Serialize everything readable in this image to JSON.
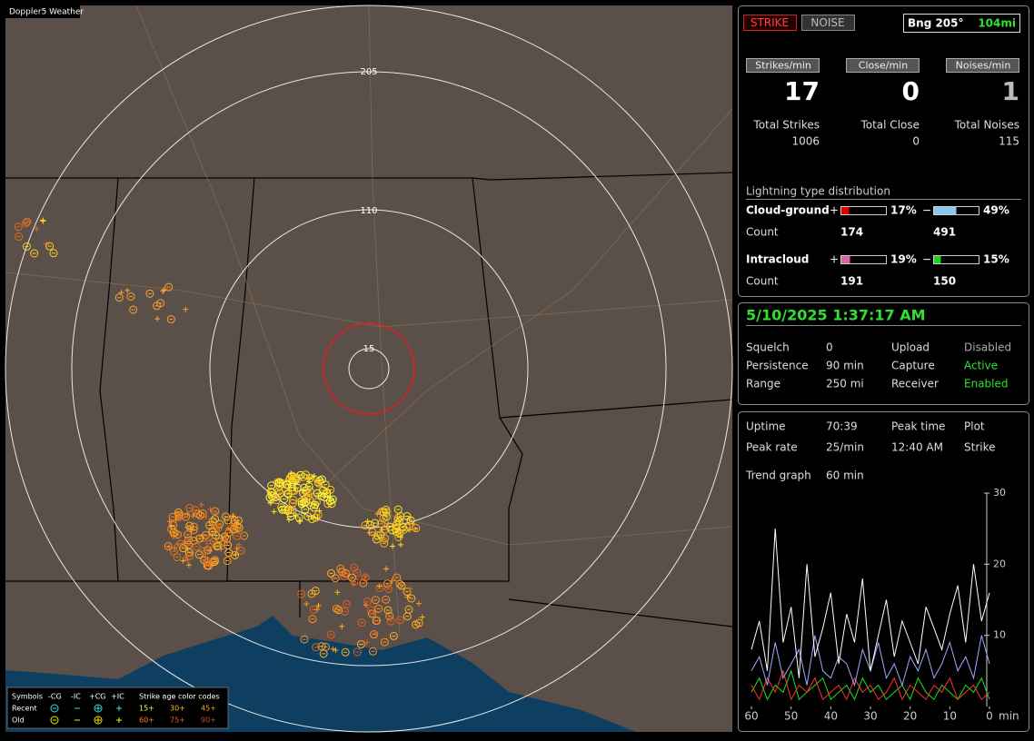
{
  "window_title": "Doppler5 Weather",
  "map": {
    "ring_labels": [
      "15",
      "110",
      "205"
    ]
  },
  "map_legend": {
    "header": [
      "Symbols",
      "-CG",
      "-IC",
      "+CG",
      "+IC",
      "Strike age color codes"
    ],
    "rows": [
      {
        "label": "Recent",
        "ages": [
          "15+",
          "30+",
          "45+"
        ]
      },
      {
        "label": "Old",
        "ages": [
          "60+",
          "75+",
          "90+"
        ]
      }
    ]
  },
  "status": {
    "strike": "STRIKE",
    "noise": "NOISE",
    "bearing": "Bng 205°",
    "distance": "104mi"
  },
  "counters": [
    {
      "label": "Strikes/min",
      "value": 17,
      "total_label": "Total Strikes",
      "total": 1006
    },
    {
      "label": "Close/min",
      "value": 0,
      "total_label": "Total Close",
      "total": 0
    },
    {
      "label": "Noises/min",
      "value": 1,
      "total_label": "Total Noises",
      "total": 115
    }
  ],
  "distribution": {
    "title": "Lightning type distribution",
    "count_label": "Count",
    "types": [
      {
        "name": "Cloud-ground",
        "positive": {
          "sign": "+",
          "percent": 17,
          "percent_label": "17%",
          "count": 174,
          "color": "#e00000"
        },
        "negative": {
          "sign": "−",
          "percent": 49,
          "percent_label": "49%",
          "count": 491,
          "color": "#8cc8f0"
        }
      },
      {
        "name": "Intracloud",
        "positive": {
          "sign": "+",
          "percent": 19,
          "percent_label": "19%",
          "count": 191,
          "color": "#e060a0"
        },
        "negative": {
          "sign": "−",
          "percent": 15,
          "percent_label": "15%",
          "count": 150,
          "color": "#20d020"
        }
      }
    ]
  },
  "clock": {
    "datetime": "5/10/2025 1:37:17 AM",
    "settings": [
      [
        "Squelch",
        "0",
        "Upload",
        "Disabled"
      ],
      [
        "Persistence",
        "90 min",
        "Capture",
        "Active"
      ],
      [
        "Range",
        "250 mi",
        "Receiver",
        "Enabled"
      ]
    ]
  },
  "stats": {
    "rows": [
      [
        "Uptime",
        "70:39",
        "Peak time",
        "Plot"
      ],
      [
        "Peak rate",
        "25/min",
        "12:40 AM",
        "Strike"
      ]
    ],
    "trend_label": "Trend graph",
    "trend_value": "60 min"
  },
  "trend": {
    "type": "line",
    "xlim": [
      60,
      0
    ],
    "ylim": [
      0,
      30
    ],
    "yticks": [
      10,
      20,
      30
    ],
    "xticks": [
      60,
      50,
      40,
      30,
      20,
      10,
      0
    ],
    "x_unit": "min",
    "x": [
      60,
      58,
      56,
      54,
      52,
      50,
      48,
      46,
      44,
      42,
      40,
      38,
      36,
      34,
      32,
      30,
      28,
      26,
      24,
      22,
      20,
      18,
      16,
      14,
      12,
      10,
      8,
      6,
      4,
      2,
      0
    ],
    "series": [
      {
        "color": "#ffffff",
        "values": [
          8,
          12,
          5,
          25,
          9,
          14,
          4,
          20,
          7,
          11,
          16,
          6,
          13,
          9,
          18,
          5,
          10,
          15,
          7,
          12,
          9,
          6,
          14,
          11,
          8,
          13,
          17,
          9,
          20,
          12,
          16
        ]
      },
      {
        "color": "#a0a8ff",
        "values": [
          5,
          7,
          3,
          9,
          4,
          6,
          8,
          3,
          10,
          5,
          4,
          7,
          6,
          3,
          8,
          5,
          9,
          4,
          6,
          3,
          7,
          5,
          8,
          4,
          6,
          9,
          5,
          7,
          4,
          10,
          6
        ]
      },
      {
        "color": "#ff3030",
        "values": [
          3,
          1,
          4,
          2,
          5,
          1,
          3,
          2,
          4,
          1,
          2,
          3,
          1,
          4,
          2,
          3,
          1,
          2,
          4,
          1,
          3,
          2,
          1,
          3,
          2,
          4,
          1,
          2,
          3,
          1,
          2
        ]
      },
      {
        "color": "#20e020",
        "values": [
          2,
          4,
          1,
          3,
          2,
          5,
          1,
          2,
          3,
          4,
          1,
          2,
          3,
          1,
          4,
          2,
          3,
          1,
          2,
          3,
          1,
          4,
          2,
          1,
          3,
          2,
          1,
          3,
          2,
          4,
          1
        ]
      }
    ]
  }
}
